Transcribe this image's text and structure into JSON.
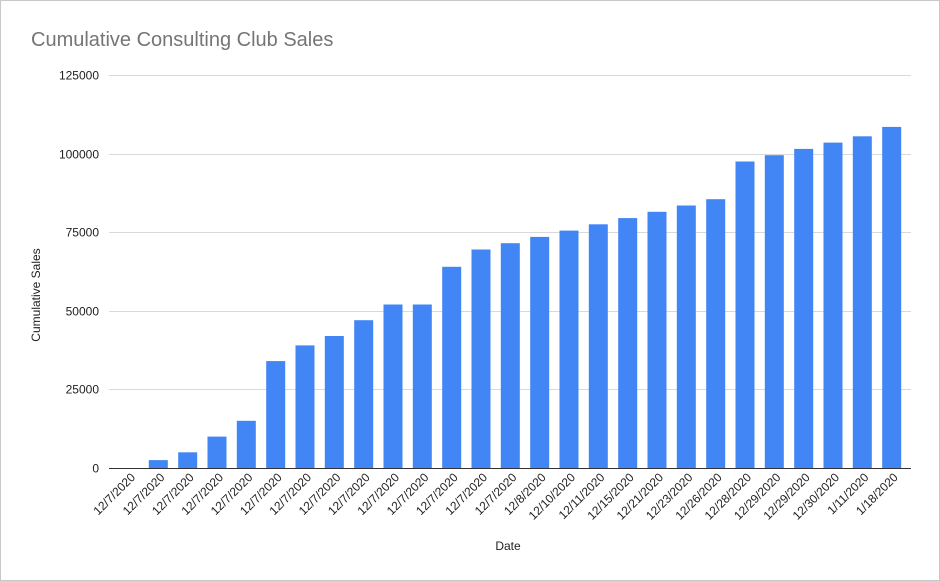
{
  "chart_data": {
    "type": "bar",
    "title": "Cumulative Consulting Club Sales",
    "xlabel": "Date",
    "ylabel": "Cumulative Sales",
    "ylim": [
      0,
      125000
    ],
    "yticks": [
      0,
      25000,
      50000,
      75000,
      100000,
      125000
    ],
    "grid": true,
    "legend": "none",
    "color": "#4285f4",
    "categories": [
      "12/7/2020",
      "12/7/2020",
      "12/7/2020",
      "12/7/2020",
      "12/7/2020",
      "12/7/2020",
      "12/7/2020",
      "12/7/2020",
      "12/7/2020",
      "12/7/2020",
      "12/7/2020",
      "12/7/2020",
      "12/7/2020",
      "12/7/2020",
      "12/8/2020",
      "12/10/2020",
      "12/11/2020",
      "12/15/2020",
      "12/21/2020",
      "12/23/2020",
      "12/26/2020",
      "12/28/2020",
      "12/29/2020",
      "12/29/2020",
      "12/30/2020",
      "1/11/2020",
      "1/18/2020"
    ],
    "values": [
      0,
      2500,
      5000,
      10000,
      15000,
      34000,
      39000,
      42000,
      47000,
      52000,
      52000,
      64000,
      69500,
      71500,
      73500,
      75500,
      77500,
      79500,
      81500,
      83500,
      85500,
      97500,
      99500,
      101500,
      103500,
      105500,
      108500
    ]
  }
}
